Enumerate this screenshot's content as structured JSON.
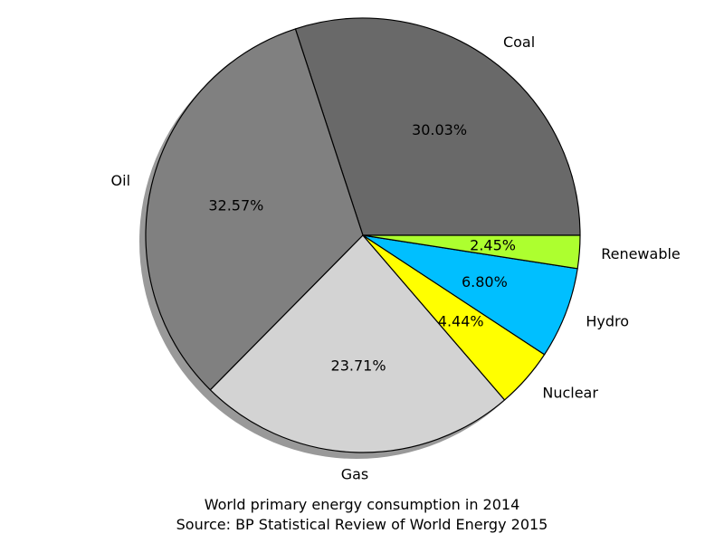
{
  "chart_data": {
    "type": "pie",
    "start_angle_deg": 0,
    "direction": "counterclockwise",
    "shadow": true,
    "slices": [
      {
        "label": "Coal",
        "value": 30.03,
        "pct_label": "30.03%",
        "color": "#696969"
      },
      {
        "label": "Oil",
        "value": 32.57,
        "pct_label": "32.57%",
        "color": "#808080"
      },
      {
        "label": "Gas",
        "value": 23.71,
        "pct_label": "23.71%",
        "color": "#d3d3d3"
      },
      {
        "label": "Nuclear",
        "value": 4.44,
        "pct_label": "4.44%",
        "color": "#ffff00"
      },
      {
        "label": "Hydro",
        "value": 6.8,
        "pct_label": "6.80%",
        "color": "#00bfff"
      },
      {
        "label": "Renewable",
        "value": 2.45,
        "pct_label": "2.45%",
        "color": "#adff2f"
      }
    ],
    "caption_line1": "World primary energy consumption in 2014",
    "caption_line2": "Source: BP Statistical Review of World Energy 2015"
  }
}
